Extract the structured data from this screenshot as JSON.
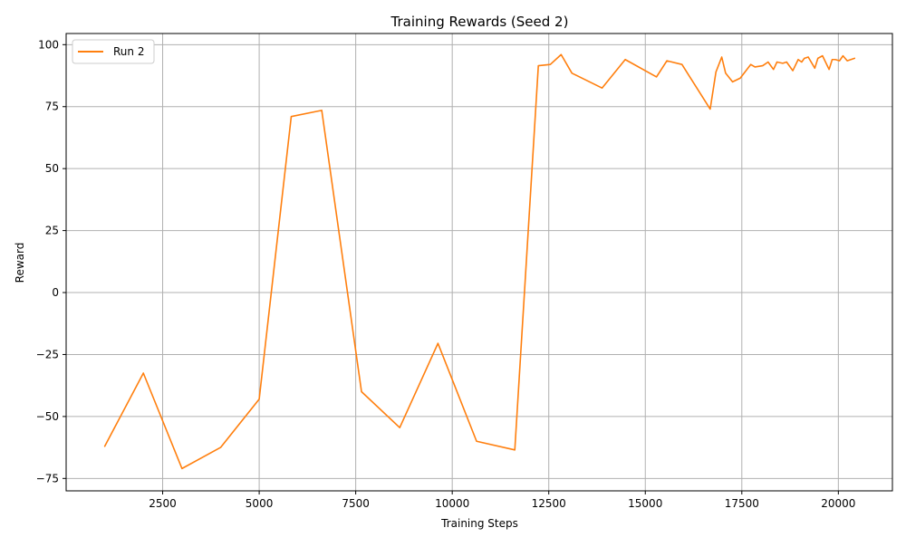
{
  "chart_data": {
    "type": "line",
    "title": "Training Rewards (Seed 2)",
    "xlabel": "Training Steps",
    "ylabel": "Reward",
    "xlim": [
      0,
      21400
    ],
    "ylim": [
      -80,
      104.5
    ],
    "xticks": [
      2500,
      5000,
      7500,
      10000,
      12500,
      15000,
      17500,
      20000
    ],
    "yticks": [
      -75,
      -50,
      -25,
      0,
      25,
      50,
      75,
      100
    ],
    "xtick_labels": [
      "2500",
      "5000",
      "7500",
      "10000",
      "12500",
      "15000",
      "17500",
      "20000"
    ],
    "ytick_labels": [
      "−75",
      "−50",
      "−25",
      "0",
      "25",
      "50",
      "75",
      "100"
    ],
    "grid": true,
    "legend_position": "top-left",
    "series": [
      {
        "name": "Run 2",
        "color": "#ff7f0e",
        "x": [
          1000,
          2000,
          3000,
          4000,
          5000,
          5830,
          6620,
          7650,
          8640,
          9630,
          10630,
          11620,
          12230,
          12540,
          12820,
          13100,
          13880,
          14480,
          15290,
          15560,
          15950,
          16680,
          16830,
          16980,
          17080,
          17260,
          17460,
          17730,
          17840,
          18040,
          18180,
          18320,
          18410,
          18560,
          18660,
          18820,
          18960,
          19050,
          19120,
          19220,
          19390,
          19470,
          19590,
          19760,
          19840,
          19920,
          20030,
          20120,
          20230,
          20420
        ],
        "y": [
          -62,
          -32.5,
          -71,
          -62.5,
          -43,
          71,
          73.5,
          -40,
          -54.5,
          -20.5,
          -60,
          -63.5,
          91.5,
          92,
          96,
          88.5,
          82.5,
          94,
          87,
          93.5,
          92,
          74,
          89,
          95,
          88.5,
          85,
          86.5,
          92,
          91,
          91.5,
          93,
          90,
          93,
          92.5,
          93,
          89.5,
          94,
          93,
          94.5,
          95,
          90.5,
          94.5,
          95.5,
          90,
          94,
          94,
          93.5,
          95.5,
          93.5,
          94.5
        ]
      }
    ]
  }
}
